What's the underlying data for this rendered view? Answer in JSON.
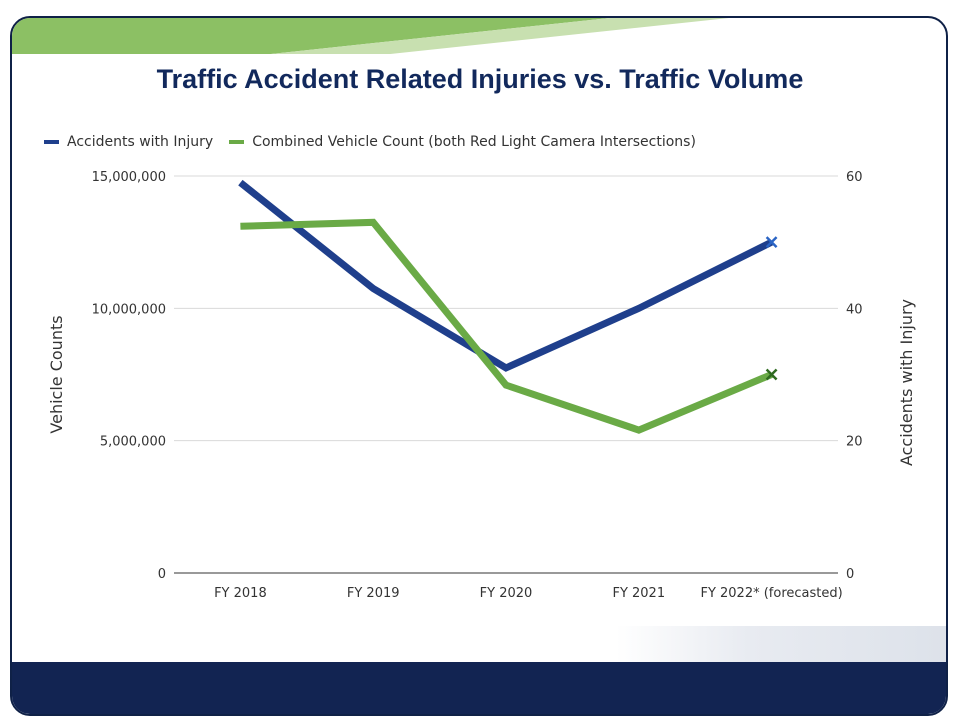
{
  "chart_data": {
    "type": "line",
    "title": "Traffic Accident Related Injuries vs. Traffic Volume",
    "categories": [
      "FY 2018",
      "FY 2019",
      "FY 2020",
      "FY 2021",
      "FY 2022* (forecasted)"
    ],
    "y_left": {
      "label": "Vehicle Counts",
      "ticks": [
        "0",
        "5,000,000",
        "10,000,000",
        "15,000,000"
      ],
      "tick_values": [
        0,
        5000000,
        10000000,
        15000000
      ],
      "range": [
        0,
        15000000
      ]
    },
    "y_right": {
      "label": "Accidents with Injury",
      "ticks": [
        "0",
        "20",
        "40",
        "60"
      ],
      "tick_values": [
        0,
        20,
        40,
        60
      ],
      "range": [
        0,
        60
      ]
    },
    "series": [
      {
        "name": "Accidents with Injury",
        "axis": "right",
        "color": "#1f3f8c",
        "values": [
          59,
          43,
          31,
          40,
          50
        ],
        "last_point_forecast": true
      },
      {
        "name": "Combined Vehicle Count (both Red Light Camera Intersections)",
        "axis": "left",
        "color": "#6aaa46",
        "values": [
          13100000,
          13250000,
          7100000,
          5400000,
          7500000
        ],
        "last_point_forecast": true
      }
    ],
    "grid": true,
    "legend_position": "top-left"
  },
  "colors": {
    "frame": "#0f2147",
    "footer": "#122452",
    "title": "#12295c",
    "header_band": "#8cc064",
    "grid": "#d9d9d9"
  }
}
